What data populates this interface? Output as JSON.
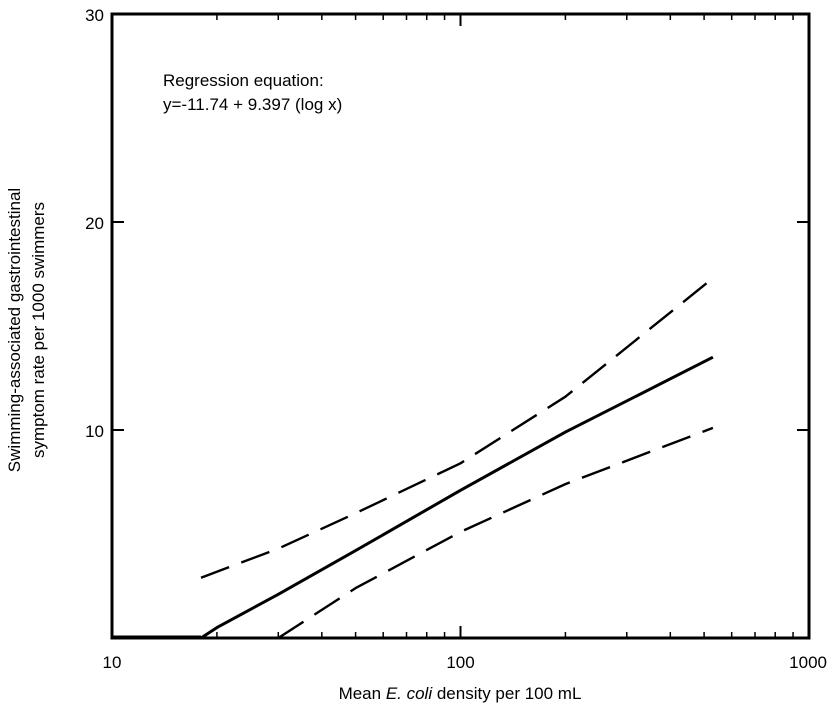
{
  "chart_data": {
    "type": "line",
    "xscale": "log",
    "xlim": [
      10,
      1000
    ],
    "ylim": [
      0,
      30
    ],
    "x_ticks": [
      {
        "value": 10,
        "label": "10"
      },
      {
        "value": 100,
        "label": "100"
      },
      {
        "value": 1000,
        "label": "1000"
      }
    ],
    "y_ticks": [
      {
        "value": 10,
        "label": "10"
      },
      {
        "value": 20,
        "label": "20"
      },
      {
        "value": 30,
        "label": "30"
      }
    ],
    "xlabel_prefix": "Mean ",
    "xlabel_italic": "E. coli",
    "xlabel_suffix": " density per 100 mL",
    "ylabel_line1": "Swimming-associated gastrointestinal",
    "ylabel_line2": "symptom rate per 1000 swimmers",
    "annotation_line1": "Regression equation:",
    "annotation_line2": "y=-11.74 + 9.397 (log x)",
    "grid": false,
    "series": [
      {
        "style": "solid",
        "x": [
          18,
          20,
          30,
          50,
          100,
          200,
          530
        ],
        "y": [
          0,
          0.5,
          2.1,
          4.2,
          7.1,
          9.9,
          13.5
        ]
      },
      {
        "style": "dashed",
        "x": [
          18,
          30,
          50,
          100,
          200,
          530
        ],
        "y": [
          2.9,
          4.3,
          6.0,
          8.4,
          11.6,
          17.3
        ]
      },
      {
        "style": "dashed",
        "x": [
          30,
          50,
          100,
          200,
          530
        ],
        "y": [
          0,
          2.4,
          5.1,
          7.4,
          10.1
        ]
      }
    ],
    "baseline_segment": {
      "x": [
        10,
        18
      ],
      "y": [
        0,
        0
      ]
    }
  }
}
